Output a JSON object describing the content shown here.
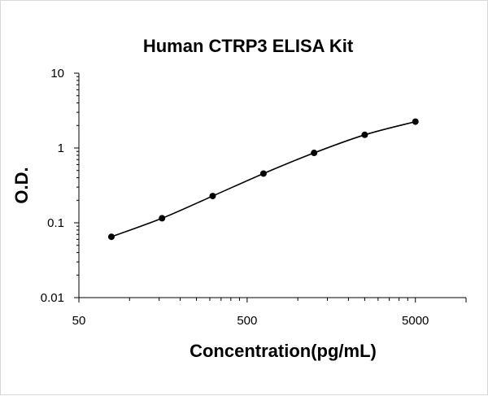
{
  "chart_data": {
    "type": "scatter",
    "title": "Human CTRP3 ELISA Kit",
    "xlabel": "Concentration(pg/mL)",
    "ylabel": "O.D.",
    "x_scale": "log",
    "y_scale": "log",
    "xlim": [
      50,
      10000
    ],
    "ylim": [
      0.01,
      10
    ],
    "x_ticks": [
      {
        "value": 50,
        "label": "50"
      },
      {
        "value": 500,
        "label": "500"
      },
      {
        "value": 5000,
        "label": "5000"
      }
    ],
    "y_ticks": [
      {
        "value": 0.01,
        "label": "0.01"
      },
      {
        "value": 0.1,
        "label": "0.1"
      },
      {
        "value": 1,
        "label": "1"
      },
      {
        "value": 10,
        "label": "10"
      }
    ],
    "grid": false,
    "legend": "none",
    "series": [
      {
        "x": [
          78,
          156,
          312,
          625,
          1250,
          2500,
          5000
        ],
        "y": [
          0.065,
          0.115,
          0.228,
          0.455,
          0.86,
          1.5,
          2.25
        ]
      }
    ],
    "colors": {
      "marker": "#000000",
      "line": "#000000",
      "axis": "#000000"
    }
  }
}
